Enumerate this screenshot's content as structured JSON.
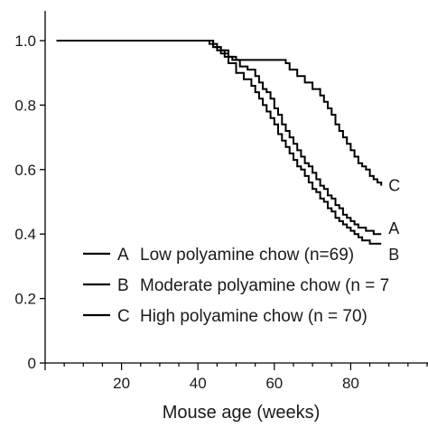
{
  "chart_data": {
    "type": "line",
    "xlabel": "Mouse age (weeks)",
    "ylabel": "",
    "xlim": [
      0,
      100
    ],
    "ylim": [
      0,
      1.05
    ],
    "x_ticks": [
      0,
      20,
      40,
      60,
      80
    ],
    "y_ticks": [
      0,
      0.2,
      0.4,
      0.6,
      0.8,
      1.0
    ],
    "y_tick_labels": [
      "0",
      "0.2",
      "0.4",
      "0.6",
      "0.8",
      "1.0"
    ],
    "grid": false,
    "legend_position": "lower-left",
    "series": [
      {
        "name": "A",
        "legend_label": "Low polyamine chow (n=69)",
        "end_label": "A",
        "color": "#000000",
        "x": [
          3,
          40,
          43,
          45,
          47,
          49,
          51,
          53,
          55,
          56,
          57,
          58,
          59,
          60,
          61,
          62,
          63,
          64,
          65,
          66,
          67,
          68,
          69,
          70,
          71,
          72,
          73,
          74,
          75,
          76,
          77,
          78,
          79,
          80,
          81,
          82,
          83,
          84,
          85,
          86,
          88
        ],
        "y": [
          1.0,
          1.0,
          0.99,
          0.97,
          0.95,
          0.94,
          0.92,
          0.91,
          0.89,
          0.87,
          0.85,
          0.84,
          0.82,
          0.79,
          0.77,
          0.74,
          0.72,
          0.7,
          0.68,
          0.66,
          0.64,
          0.62,
          0.61,
          0.59,
          0.57,
          0.55,
          0.54,
          0.52,
          0.51,
          0.49,
          0.48,
          0.46,
          0.45,
          0.44,
          0.43,
          0.42,
          0.42,
          0.41,
          0.41,
          0.4,
          0.4
        ]
      },
      {
        "name": "B",
        "legend_label": "Moderate polyamine chow (n = 7",
        "end_label": "B",
        "color": "#000000",
        "x": [
          3,
          42,
          44,
          46,
          48,
          50,
          52,
          54,
          55,
          56,
          57,
          58,
          59,
          60,
          61,
          62,
          63,
          64,
          65,
          66,
          67,
          68,
          69,
          70,
          71,
          72,
          73,
          74,
          75,
          76,
          77,
          78,
          79,
          80,
          81,
          82,
          83,
          84,
          85,
          86,
          88
        ],
        "y": [
          1.0,
          1.0,
          0.98,
          0.96,
          0.93,
          0.9,
          0.88,
          0.86,
          0.84,
          0.82,
          0.8,
          0.78,
          0.76,
          0.74,
          0.71,
          0.69,
          0.67,
          0.65,
          0.63,
          0.61,
          0.6,
          0.58,
          0.56,
          0.54,
          0.53,
          0.51,
          0.5,
          0.48,
          0.47,
          0.45,
          0.44,
          0.43,
          0.42,
          0.41,
          0.4,
          0.39,
          0.38,
          0.38,
          0.37,
          0.37,
          0.37
        ]
      },
      {
        "name": "C",
        "legend_label": "High polyamine chow (n = 70)",
        "end_label": "C",
        "color": "#000000",
        "x": [
          3,
          42,
          44,
          46,
          48,
          50,
          62,
          63,
          64,
          66,
          68,
          70,
          72,
          73,
          74,
          75,
          76,
          77,
          78,
          79,
          80,
          81,
          82,
          83,
          84,
          85,
          86,
          87,
          88
        ],
        "y": [
          1.0,
          1.0,
          0.98,
          0.97,
          0.95,
          0.94,
          0.94,
          0.93,
          0.91,
          0.89,
          0.87,
          0.85,
          0.83,
          0.81,
          0.79,
          0.77,
          0.74,
          0.72,
          0.7,
          0.68,
          0.66,
          0.64,
          0.62,
          0.61,
          0.6,
          0.58,
          0.57,
          0.56,
          0.55
        ]
      }
    ]
  }
}
